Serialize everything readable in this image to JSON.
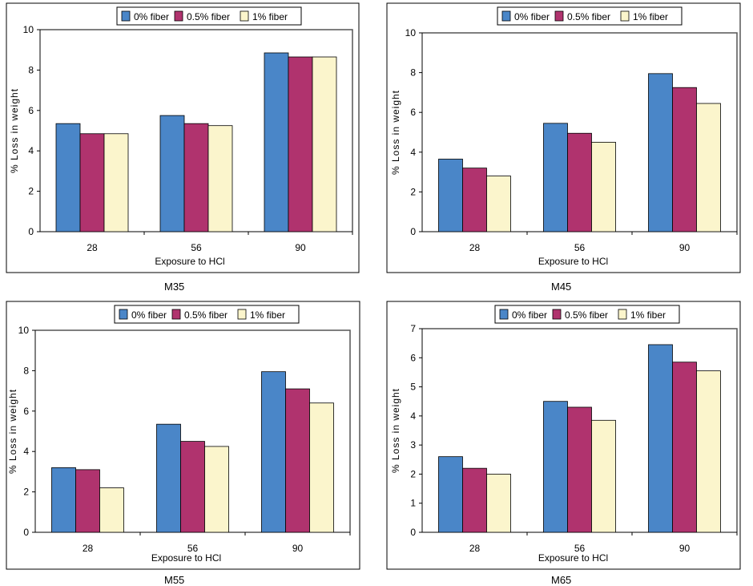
{
  "colors": {
    "series_0": "#4a86c8",
    "series_1": "#b0336e",
    "series_2": "#fbf5cc",
    "axis": "#000000",
    "frame": "#555555"
  },
  "chart_data": [
    {
      "type": "bar",
      "title": "M35",
      "xlabel": "Exposure to HCl",
      "ylabel": "% Loss in weight",
      "categories": [
        "28",
        "56",
        "90"
      ],
      "ylim": [
        0,
        10
      ],
      "yticks": [
        "0",
        "2",
        "4",
        "6",
        "8",
        "10"
      ],
      "legend_position": "top-center",
      "grid": false,
      "series": [
        {
          "name": "0% fiber",
          "values": [
            5.35,
            5.75,
            8.85
          ]
        },
        {
          "name": "0.5% fiber",
          "values": [
            4.85,
            5.35,
            8.65
          ]
        },
        {
          "name": "1% fiber",
          "values": [
            4.85,
            5.25,
            8.65
          ]
        }
      ]
    },
    {
      "type": "bar",
      "title": "M45",
      "xlabel": "Exposure to HCl",
      "ylabel": "% Loss in weight",
      "categories": [
        "28",
        "56",
        "90"
      ],
      "ylim": [
        0,
        10
      ],
      "yticks": [
        "0",
        "2",
        "4",
        "6",
        "8",
        "10"
      ],
      "legend_position": "top-center",
      "grid": false,
      "series": [
        {
          "name": "0% fiber",
          "values": [
            3.65,
            5.45,
            7.95
          ]
        },
        {
          "name": "0.5% fiber",
          "values": [
            3.2,
            4.95,
            7.25
          ]
        },
        {
          "name": "1% fiber",
          "values": [
            2.8,
            4.5,
            6.45
          ]
        }
      ]
    },
    {
      "type": "bar",
      "title": "M55",
      "xlabel": "Exposure to HCl",
      "ylabel": "% Loss in weight",
      "categories": [
        "28",
        "56",
        "90"
      ],
      "ylim": [
        0,
        10
      ],
      "yticks": [
        "0",
        "2",
        "4",
        "6",
        "8",
        "10"
      ],
      "legend_position": "top-center",
      "grid": false,
      "series": [
        {
          "name": "0% fiber",
          "values": [
            3.2,
            5.35,
            7.95
          ]
        },
        {
          "name": "0.5% fiber",
          "values": [
            3.1,
            4.5,
            7.1
          ]
        },
        {
          "name": "1% fiber",
          "values": [
            2.2,
            4.25,
            6.4
          ]
        }
      ]
    },
    {
      "type": "bar",
      "title": "M65",
      "xlabel": "Exposure to HCl",
      "ylabel": "% Loss in weight",
      "categories": [
        "28",
        "56",
        "90"
      ],
      "ylim": [
        0,
        7
      ],
      "yticks": [
        "0",
        "1",
        "2",
        "3",
        "4",
        "5",
        "6",
        "7"
      ],
      "legend_position": "top-center",
      "grid": false,
      "series": [
        {
          "name": "0% fiber",
          "values": [
            2.6,
            4.5,
            6.45
          ]
        },
        {
          "name": "0.5% fiber",
          "values": [
            2.2,
            4.3,
            5.85
          ]
        },
        {
          "name": "1% fiber",
          "values": [
            2.0,
            3.85,
            5.55
          ]
        }
      ]
    }
  ]
}
